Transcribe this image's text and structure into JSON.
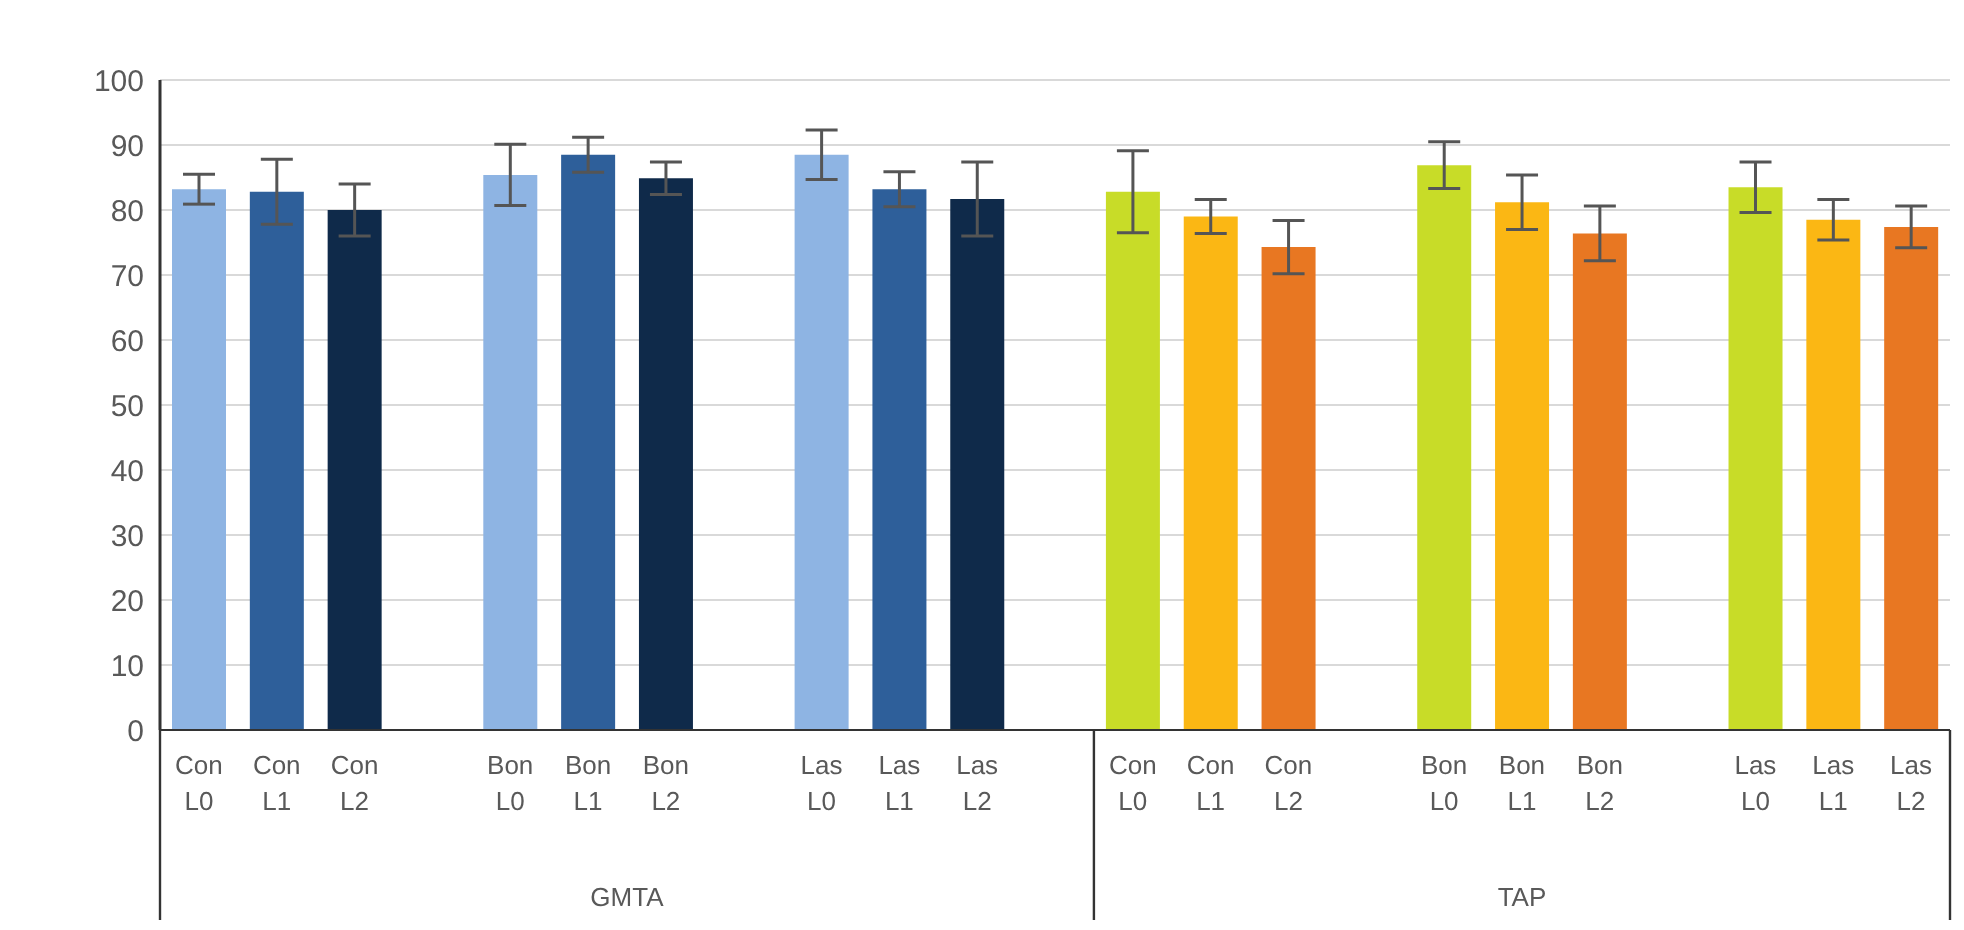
{
  "chart_data": {
    "type": "bar",
    "categories": [
      "Con L0",
      "Con L1",
      "Con L2",
      null,
      "Bon L0",
      "Bon L1",
      "Bon L2",
      null,
      "Las L0",
      "Las L1",
      "Las L2",
      null,
      "Con L0",
      "Con L1",
      "Con L2",
      null,
      "Bon L0",
      "Bon L1",
      "Bon L2",
      null,
      "Las L0",
      "Las L1",
      "Las L2"
    ],
    "values": [
      83.2,
      82.8,
      80.0,
      null,
      85.4,
      88.5,
      84.9,
      null,
      88.5,
      83.2,
      81.7,
      null,
      82.8,
      79.0,
      74.3,
      null,
      86.9,
      81.2,
      76.4,
      null,
      83.5,
      78.5,
      77.4
    ],
    "errors": [
      2.3,
      5.0,
      4.0,
      null,
      4.7,
      2.7,
      2.5,
      null,
      3.8,
      2.7,
      5.7,
      null,
      6.3,
      2.6,
      4.1,
      null,
      3.6,
      4.2,
      4.2,
      null,
      3.9,
      3.1,
      3.2
    ],
    "colors": [
      "#8eb4e3",
      "#2e5f9a",
      "#0f2a4a",
      null,
      "#8eb4e3",
      "#2e5f9a",
      "#0f2a4a",
      null,
      "#8eb4e3",
      "#2e5f9a",
      "#0f2a4a",
      null,
      "#c8dc28",
      "#fbb714",
      "#e87722",
      null,
      "#c8dc28",
      "#fbb714",
      "#e87722",
      null,
      "#c8dc28",
      "#fbb714",
      "#e87722"
    ],
    "ylim": [
      0,
      100
    ],
    "yticks": [
      0,
      10,
      20,
      30,
      40,
      50,
      60,
      70,
      80,
      90,
      100
    ],
    "grid": "y",
    "annotations": [
      "GMTA",
      "TAP"
    ]
  }
}
